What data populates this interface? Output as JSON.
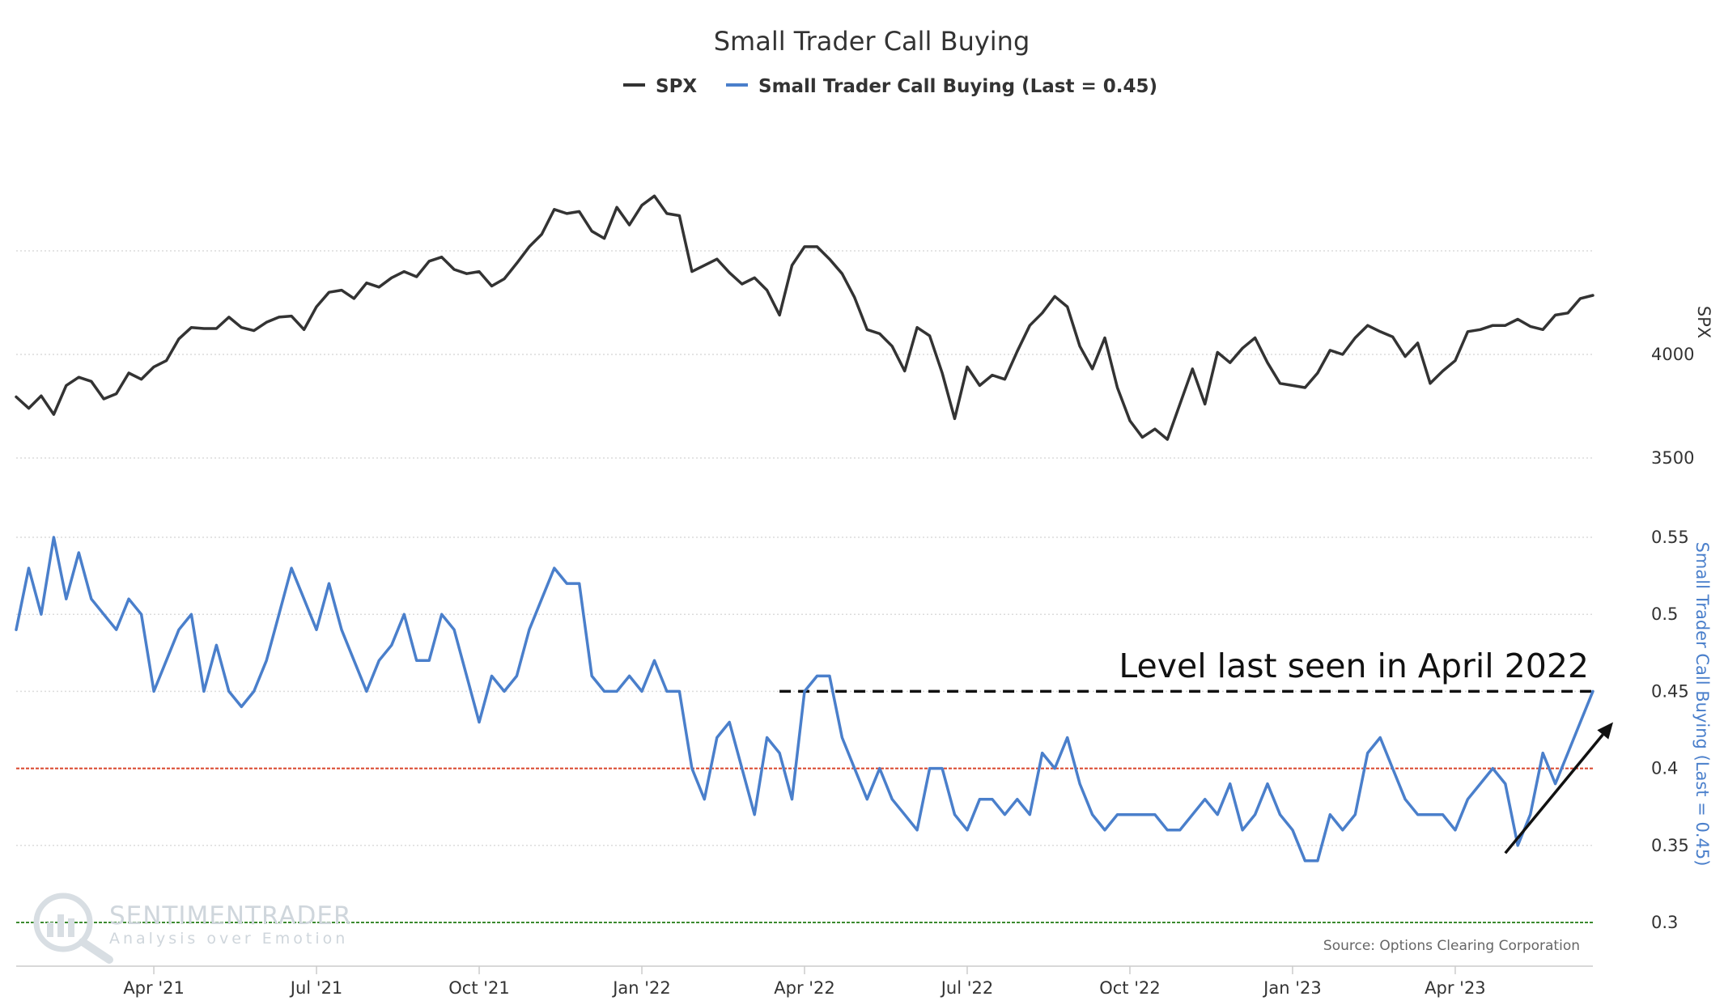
{
  "chart_data": {
    "type": "line",
    "title": "Small Trader Call Buying",
    "legend": [
      {
        "name": "SPX",
        "color": "#333333"
      },
      {
        "name": "Small Trader Call Buying (Last = 0.45)",
        "color": "#4a7fcb"
      }
    ],
    "legend_position": "top-center",
    "x_ticks": [
      "Apr '21",
      "Jul '21",
      "Oct '21",
      "Jan '22",
      "Apr '22",
      "Jul '22",
      "Oct '22",
      "Jan '23",
      "Apr '23"
    ],
    "x_range": [
      "Jan '21",
      "Jun '23"
    ],
    "series": [
      {
        "name": "SPX",
        "axis": "top",
        "ylabel": "SPX",
        "y_ticks": [
          3500,
          4000
        ],
        "ylim": [
          3470,
          4900
        ],
        "values": [
          3795,
          3740,
          3800,
          3710,
          3850,
          3890,
          3870,
          3785,
          3810,
          3910,
          3880,
          3940,
          3970,
          4075,
          4130,
          4125,
          4125,
          4180,
          4130,
          4115,
          4155,
          4180,
          4185,
          4120,
          4230,
          4300,
          4310,
          4270,
          4345,
          4325,
          4370,
          4400,
          4375,
          4450,
          4470,
          4410,
          4390,
          4400,
          4330,
          4365,
          4440,
          4520,
          4580,
          4700,
          4680,
          4690,
          4595,
          4560,
          4710,
          4625,
          4720,
          4765,
          4680,
          4670,
          4400,
          4430,
          4460,
          4395,
          4340,
          4370,
          4310,
          4190,
          4430,
          4520,
          4520,
          4460,
          4390,
          4275,
          4120,
          4100,
          4040,
          3920,
          4130,
          4090,
          3910,
          3690,
          3940,
          3850,
          3900,
          3880,
          4015,
          4140,
          4200,
          4280,
          4230,
          4040,
          3930,
          4080,
          3840,
          3680,
          3600,
          3640,
          3590,
          3760,
          3930,
          3760,
          4010,
          3960,
          4030,
          4080,
          3960,
          3860,
          3850,
          3840,
          3910,
          4020,
          4000,
          4080,
          4140,
          4110,
          4085,
          3990,
          4055,
          3860,
          3920,
          3970,
          4110,
          4120,
          4140,
          4140,
          4170,
          4135,
          4120,
          4190,
          4200,
          4270,
          4285
        ],
        "color": "#333333"
      },
      {
        "name": "Small Trader Call Buying (Last = 0.45)",
        "axis": "bottom",
        "ylabel": "Small Trader Call Buying (Last = 0.45)",
        "y_ticks": [
          0.3,
          0.35,
          0.4,
          0.45,
          0.5,
          0.55
        ],
        "ylim": [
          0.285,
          0.575
        ],
        "values": [
          0.49,
          0.53,
          0.5,
          0.55,
          0.51,
          0.54,
          0.51,
          0.5,
          0.49,
          0.51,
          0.5,
          0.45,
          0.47,
          0.49,
          0.5,
          0.45,
          0.48,
          0.45,
          0.44,
          0.45,
          0.47,
          0.5,
          0.53,
          0.51,
          0.49,
          0.52,
          0.49,
          0.47,
          0.45,
          0.47,
          0.48,
          0.5,
          0.47,
          0.47,
          0.5,
          0.49,
          0.46,
          0.43,
          0.46,
          0.45,
          0.46,
          0.49,
          0.51,
          0.53,
          0.52,
          0.52,
          0.46,
          0.45,
          0.45,
          0.46,
          0.45,
          0.47,
          0.45,
          0.45,
          0.4,
          0.38,
          0.42,
          0.43,
          0.4,
          0.37,
          0.42,
          0.41,
          0.38,
          0.45,
          0.46,
          0.46,
          0.42,
          0.4,
          0.38,
          0.4,
          0.38,
          0.37,
          0.36,
          0.4,
          0.4,
          0.37,
          0.36,
          0.38,
          0.38,
          0.37,
          0.38,
          0.37,
          0.41,
          0.4,
          0.42,
          0.39,
          0.37,
          0.36,
          0.37,
          0.37,
          0.37,
          0.37,
          0.36,
          0.36,
          0.37,
          0.38,
          0.37,
          0.39,
          0.36,
          0.37,
          0.39,
          0.37,
          0.36,
          0.34,
          0.34,
          0.37,
          0.36,
          0.37,
          0.41,
          0.42,
          0.4,
          0.38,
          0.37,
          0.37,
          0.37,
          0.36,
          0.38,
          0.39,
          0.4,
          0.39,
          0.35,
          0.37,
          0.41,
          0.39,
          0.41,
          0.43,
          0.45
        ],
        "color": "#4a7fcb"
      }
    ],
    "reference_lines": [
      {
        "axis": "bottom",
        "value": 0.4,
        "color": "#d9452b",
        "style": "dashed"
      },
      {
        "axis": "bottom",
        "value": 0.3,
        "color": "#3b8a2f",
        "style": "dashed"
      },
      {
        "axis": "bottom",
        "value": 0.45,
        "color": "#111111",
        "style": "dashed",
        "from_index": 61
      }
    ],
    "annotation": {
      "text": "Level last seen in April 2022",
      "arrow_from_index": 119,
      "arrow_to_index": 126
    },
    "source": "Source: Options Clearing Corporation",
    "watermark": {
      "line1": "SENTIMENTRADER",
      "line2": "Analysis over Emotion"
    }
  }
}
